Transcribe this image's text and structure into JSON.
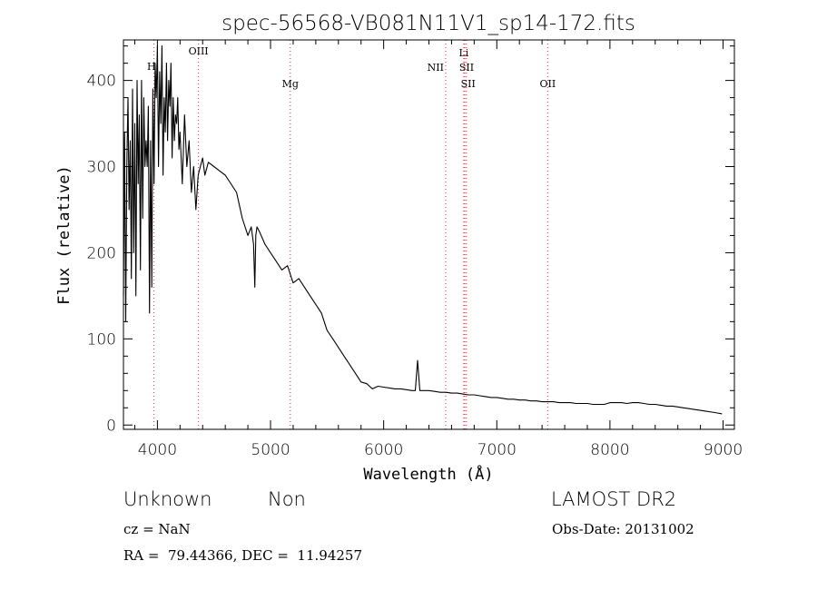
{
  "chart_data": {
    "type": "line",
    "title": "spec-56568-VB081N11V1_sp14-172.fits",
    "xlabel": "Wavelength (Å)",
    "ylabel": "Flux (relative)",
    "xlim": [
      3700,
      9100
    ],
    "ylim": [
      -5,
      447
    ],
    "xticks": [
      4000,
      5000,
      6000,
      7000,
      8000,
      9000
    ],
    "yticks": [
      0,
      100,
      200,
      300,
      400
    ],
    "grid": false,
    "line_color": "#000000",
    "marker_color": "#cc3333",
    "markers": [
      {
        "label": "H",
        "wavelength": 3970
      },
      {
        "label": "OIII",
        "wavelength": 4363
      },
      {
        "label": "Mg",
        "wavelength": 5175
      },
      {
        "label": "NII",
        "wavelength": 6548
      },
      {
        "label": "Li",
        "wavelength": 6708
      },
      {
        "label": "SII",
        "wavelength": 6717
      },
      {
        "label": "SII",
        "wavelength": 6731
      },
      {
        "label": "OII",
        "wavelength": 7450
      }
    ],
    "series": [
      {
        "x": [
          3700,
          3710,
          3720,
          3730,
          3740,
          3750,
          3760,
          3770,
          3780,
          3790,
          3800,
          3810,
          3820,
          3830,
          3840,
          3850,
          3860,
          3870,
          3880,
          3890,
          3900,
          3910,
          3920,
          3930,
          3940,
          3950,
          3960,
          3970,
          3980,
          3990,
          4000,
          4010,
          4020,
          4030,
          4040,
          4050,
          4060,
          4070,
          4080,
          4090,
          4100,
          4110,
          4120,
          4130,
          4140,
          4150,
          4160,
          4170,
          4180,
          4190,
          4200,
          4220,
          4240,
          4260,
          4280,
          4300,
          4320,
          4340,
          4360,
          4380,
          4400,
          4420,
          4450,
          4500,
          4550,
          4600,
          4650,
          4700,
          4750,
          4800,
          4830,
          4850,
          4861,
          4870,
          4880,
          4900,
          4950,
          5000,
          5050,
          5100,
          5150,
          5175,
          5200,
          5250,
          5300,
          5350,
          5400,
          5450,
          5500,
          5550,
          5600,
          5650,
          5700,
          5750,
          5800,
          5850,
          5900,
          5950,
          6000,
          6050,
          6100,
          6150,
          6200,
          6250,
          6280,
          6300,
          6320,
          6350,
          6400,
          6450,
          6500,
          6550,
          6600,
          6650,
          6700,
          6750,
          6800,
          6850,
          6900,
          6950,
          7000,
          7050,
          7100,
          7150,
          7200,
          7250,
          7300,
          7350,
          7400,
          7450,
          7500,
          7550,
          7600,
          7650,
          7700,
          7750,
          7800,
          7850,
          7900,
          7950,
          8000,
          8050,
          8100,
          8150,
          8200,
          8250,
          8300,
          8350,
          8400,
          8450,
          8500,
          8550,
          8600,
          8650,
          8700,
          8750,
          8800,
          8850,
          8900,
          8950,
          8990
        ],
        "y": [
          150,
          340,
          120,
          300,
          380,
          250,
          330,
          170,
          390,
          200,
          350,
          150,
          400,
          280,
          360,
          180,
          400,
          240,
          380,
          300,
          330,
          300,
          370,
          130,
          330,
          160,
          390,
          280,
          420,
          380,
          440,
          300,
          410,
          350,
          440,
          290,
          380,
          340,
          420,
          330,
          400,
          370,
          420,
          310,
          380,
          330,
          360,
          350,
          380,
          320,
          340,
          280,
          360,
          300,
          330,
          270,
          300,
          250,
          290,
          300,
          310,
          290,
          305,
          300,
          295,
          290,
          280,
          270,
          240,
          220,
          230,
          210,
          160,
          220,
          230,
          225,
          210,
          200,
          190,
          180,
          185,
          175,
          165,
          170,
          160,
          150,
          140,
          130,
          110,
          100,
          90,
          80,
          70,
          60,
          50,
          48,
          42,
          45,
          44,
          43,
          42,
          42,
          41,
          40,
          40,
          75,
          40,
          40,
          40,
          39,
          38,
          38,
          37,
          37,
          36,
          35,
          35,
          34,
          33,
          32,
          32,
          31,
          30,
          30,
          29,
          29,
          28,
          28,
          27,
          27,
          27,
          26,
          26,
          26,
          25,
          25,
          25,
          24,
          24,
          24,
          26,
          26,
          26,
          25,
          26,
          26,
          25,
          24,
          24,
          23,
          22,
          22,
          21,
          20,
          19,
          18,
          17,
          16,
          15,
          14,
          13
        ]
      }
    ]
  },
  "info": {
    "object_class": "Unknown",
    "subclass": "Non",
    "survey": "LAMOST DR2",
    "cz_label": "cz = NaN",
    "obs_date": "Obs-Date: 20131002",
    "coords": "RA =  79.44366, DEC =  11.94257"
  }
}
